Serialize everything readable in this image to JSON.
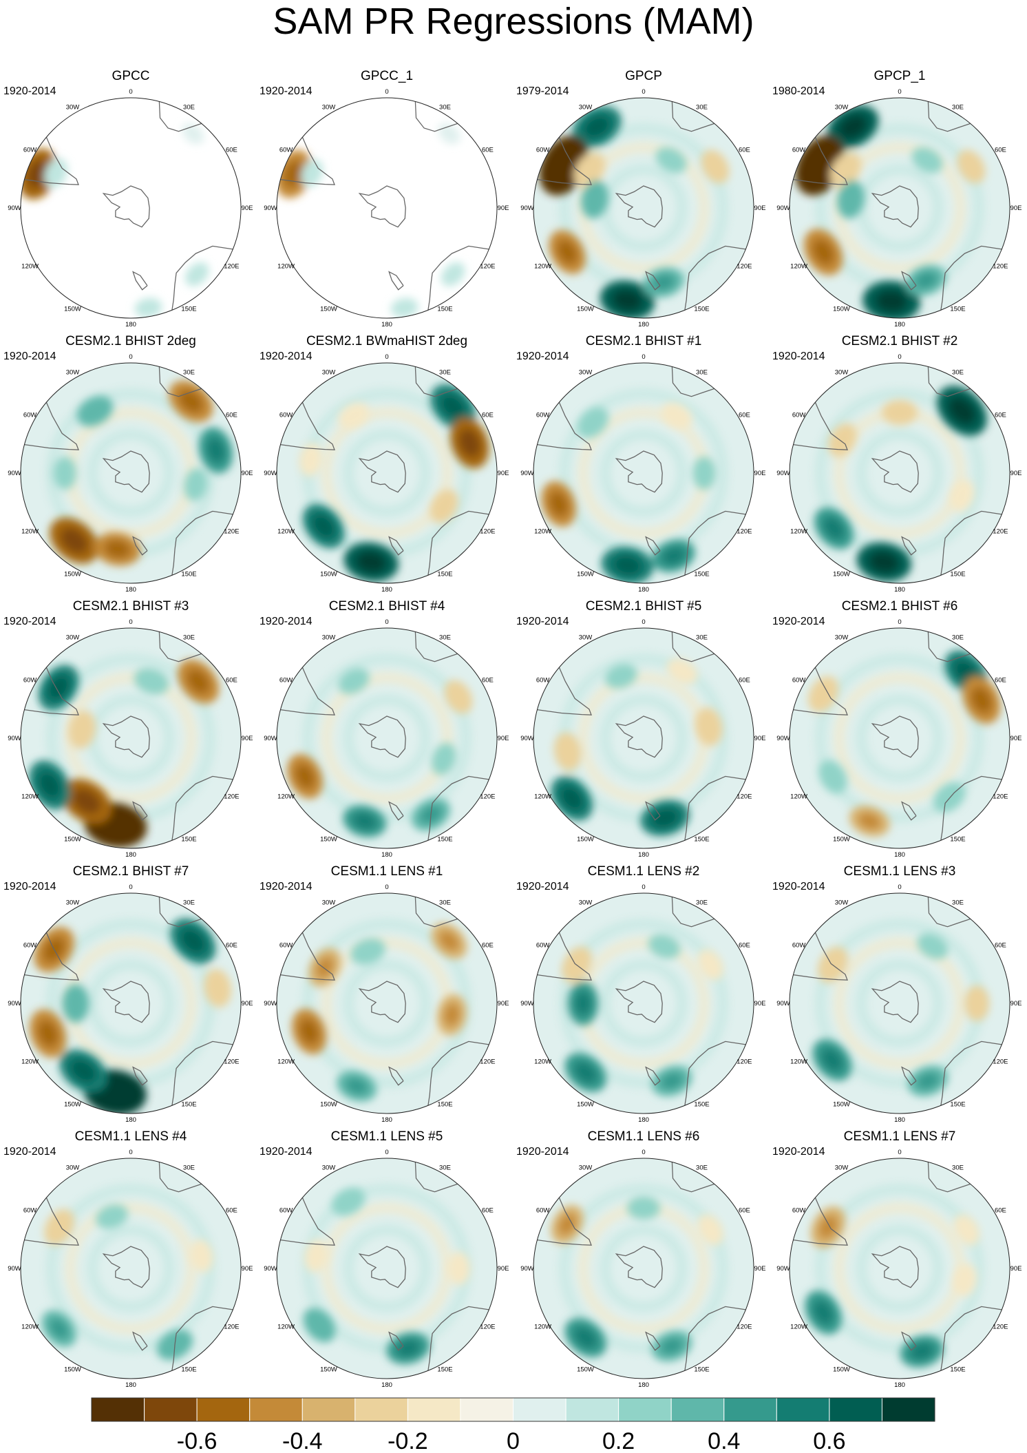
{
  "title": "SAM PR Regressions (MAM)",
  "colorbar": {
    "colors": [
      "#543005",
      "#7e470b",
      "#a4660f",
      "#c48a38",
      "#d8b26e",
      "#ebd29c",
      "#f5e8c6",
      "#f5f2e6",
      "#e0f0ee",
      "#c0e6e0",
      "#90d3c7",
      "#5fb7aa",
      "#359a8d",
      "#147d72",
      "#015e52",
      "#003c30"
    ],
    "ticks": [
      "-0.6",
      "-0.4",
      "-0.2",
      "0",
      "0.2",
      "0.4",
      "0.6"
    ],
    "tick_values": [
      -0.6,
      -0.4,
      -0.2,
      0,
      0.2,
      0.4,
      0.6
    ],
    "levels": [
      -0.7,
      -0.6,
      -0.5,
      -0.4,
      -0.3,
      -0.2,
      -0.1,
      0,
      0.1,
      0.2,
      0.3,
      0.4,
      0.5,
      0.6,
      0.7
    ],
    "range": [
      -0.8,
      0.8
    ]
  },
  "lon_labels": [
    "0",
    "30E",
    "60E",
    "90E",
    "120E",
    "150E",
    "180",
    "150W",
    "120W",
    "90W",
    "60W",
    "30W"
  ],
  "chart_data": {
    "type": "heatmap",
    "projection": "south-polar-stereographic",
    "grid": "5 rows x 4 columns of panels",
    "panels": [
      {
        "title": "GPCC",
        "years": "1920-2014",
        "coverage": "land-only",
        "features": [
          {
            "lon": -70,
            "r": 0.9,
            "v": -0.55
          },
          {
            "lon": -65,
            "r": 0.75,
            "v": 0.15
          },
          {
            "lon": 40,
            "r": 0.88,
            "v": 0.05
          },
          {
            "lon": 135,
            "r": 0.85,
            "v": 0.1
          },
          {
            "lon": 170,
            "r": 0.92,
            "v": 0.1
          }
        ]
      },
      {
        "title": "GPCC_1",
        "years": "1920-2014",
        "coverage": "land-only",
        "features": [
          {
            "lon": -70,
            "r": 0.9,
            "v": -0.5
          },
          {
            "lon": -65,
            "r": 0.75,
            "v": 0.12
          },
          {
            "lon": 40,
            "r": 0.88,
            "v": 0.05
          },
          {
            "lon": 135,
            "r": 0.85,
            "v": 0.1
          },
          {
            "lon": 170,
            "r": 0.92,
            "v": 0.1
          }
        ]
      },
      {
        "title": "GPCP",
        "years": "1979-2014",
        "features": [
          {
            "lon": -30,
            "r": 0.85,
            "v": 0.55
          },
          {
            "lon": -62,
            "r": 0.82,
            "v": -0.75
          },
          {
            "lon": -55,
            "r": 0.6,
            "v": -0.3
          },
          {
            "lon": -120,
            "r": 0.8,
            "v": -0.45
          },
          {
            "lon": -170,
            "r": 0.85,
            "v": 0.6
          },
          {
            "lon": 165,
            "r": 0.7,
            "v": 0.35
          },
          {
            "lon": 60,
            "r": 0.75,
            "v": -0.25
          },
          {
            "lon": -80,
            "r": 0.45,
            "v": 0.3
          },
          {
            "lon": 30,
            "r": 0.5,
            "v": 0.2
          }
        ]
      },
      {
        "title": "GPCP_1",
        "years": "1980-2014",
        "features": [
          {
            "lon": -30,
            "r": 0.85,
            "v": 0.6
          },
          {
            "lon": -62,
            "r": 0.82,
            "v": -0.75
          },
          {
            "lon": -55,
            "r": 0.6,
            "v": -0.3
          },
          {
            "lon": -120,
            "r": 0.8,
            "v": -0.5
          },
          {
            "lon": -175,
            "r": 0.85,
            "v": 0.65
          },
          {
            "lon": 160,
            "r": 0.7,
            "v": 0.35
          },
          {
            "lon": 60,
            "r": 0.75,
            "v": -0.25
          },
          {
            "lon": -80,
            "r": 0.45,
            "v": 0.3
          },
          {
            "lon": 30,
            "r": 0.5,
            "v": 0.2
          }
        ]
      },
      {
        "title": "CESM2.1 BHIST 2deg",
        "years": "1920-2014",
        "features": [
          {
            "lon": 40,
            "r": 0.85,
            "v": -0.5
          },
          {
            "lon": 75,
            "r": 0.8,
            "v": 0.45
          },
          {
            "lon": -140,
            "r": 0.8,
            "v": -0.6
          },
          {
            "lon": -170,
            "r": 0.7,
            "v": -0.45
          },
          {
            "lon": -30,
            "r": 0.65,
            "v": 0.3
          },
          {
            "lon": -90,
            "r": 0.6,
            "v": 0.2
          },
          {
            "lon": 100,
            "r": 0.6,
            "v": 0.2
          }
        ]
      },
      {
        "title": "CESM2.1 BWmaHIST 2deg",
        "years": "1920-2014",
        "features": [
          {
            "lon": 45,
            "r": 0.85,
            "v": 0.55
          },
          {
            "lon": 70,
            "r": 0.8,
            "v": -0.55
          },
          {
            "lon": -170,
            "r": 0.82,
            "v": 0.6
          },
          {
            "lon": -130,
            "r": 0.75,
            "v": 0.5
          },
          {
            "lon": -30,
            "r": 0.6,
            "v": -0.2
          },
          {
            "lon": 120,
            "r": 0.6,
            "v": -0.25
          },
          {
            "lon": -80,
            "r": 0.7,
            "v": -0.2
          }
        ]
      },
      {
        "title": "CESM2.1 BHIST #1",
        "years": "1920-2014",
        "features": [
          {
            "lon": -110,
            "r": 0.82,
            "v": -0.45
          },
          {
            "lon": -170,
            "r": 0.85,
            "v": 0.55
          },
          {
            "lon": 160,
            "r": 0.8,
            "v": 0.4
          },
          {
            "lon": 30,
            "r": 0.6,
            "v": -0.2
          },
          {
            "lon": 90,
            "r": 0.55,
            "v": 0.2
          },
          {
            "lon": -45,
            "r": 0.65,
            "v": 0.25
          }
        ]
      },
      {
        "title": "CESM2.1 BHIST #2",
        "years": "1920-2014",
        "features": [
          {
            "lon": 45,
            "r": 0.8,
            "v": 0.65
          },
          {
            "lon": -170,
            "r": 0.82,
            "v": 0.6
          },
          {
            "lon": -130,
            "r": 0.78,
            "v": 0.45
          },
          {
            "lon": -60,
            "r": 0.6,
            "v": -0.25
          },
          {
            "lon": 110,
            "r": 0.6,
            "v": -0.2
          },
          {
            "lon": 0,
            "r": 0.55,
            "v": -0.25
          }
        ]
      },
      {
        "title": "CESM2.1 BHIST #3",
        "years": "1920-2014",
        "features": [
          {
            "lon": -170,
            "r": 0.8,
            "v": -0.75
          },
          {
            "lon": -145,
            "r": 0.7,
            "v": -0.6
          },
          {
            "lon": -120,
            "r": 0.85,
            "v": 0.55
          },
          {
            "lon": -55,
            "r": 0.8,
            "v": 0.5
          },
          {
            "lon": 50,
            "r": 0.8,
            "v": -0.5
          },
          {
            "lon": -80,
            "r": 0.45,
            "v": -0.3
          },
          {
            "lon": 20,
            "r": 0.55,
            "v": 0.25
          }
        ]
      },
      {
        "title": "CESM2.1 BHIST #4",
        "years": "1920-2014",
        "features": [
          {
            "lon": -115,
            "r": 0.82,
            "v": -0.45
          },
          {
            "lon": -165,
            "r": 0.78,
            "v": 0.4
          },
          {
            "lon": 150,
            "r": 0.8,
            "v": 0.35
          },
          {
            "lon": 60,
            "r": 0.75,
            "v": -0.25
          },
          {
            "lon": -30,
            "r": 0.6,
            "v": 0.2
          },
          {
            "lon": 110,
            "r": 0.55,
            "v": 0.2
          }
        ]
      },
      {
        "title": "CESM2.1 BHIST #5",
        "years": "1920-2014",
        "features": [
          {
            "lon": -130,
            "r": 0.85,
            "v": 0.5
          },
          {
            "lon": 165,
            "r": 0.75,
            "v": 0.5
          },
          {
            "lon": -100,
            "r": 0.7,
            "v": -0.3
          },
          {
            "lon": 80,
            "r": 0.6,
            "v": -0.3
          },
          {
            "lon": -20,
            "r": 0.6,
            "v": 0.2
          },
          {
            "lon": 30,
            "r": 0.7,
            "v": -0.2
          }
        ]
      },
      {
        "title": "CESM2.1 BHIST #6",
        "years": "1920-2014",
        "features": [
          {
            "lon": 45,
            "r": 0.85,
            "v": 0.5
          },
          {
            "lon": 65,
            "r": 0.82,
            "v": -0.5
          },
          {
            "lon": -160,
            "r": 0.8,
            "v": -0.35
          },
          {
            "lon": -120,
            "r": 0.7,
            "v": 0.25
          },
          {
            "lon": 140,
            "r": 0.7,
            "v": 0.25
          },
          {
            "lon": -60,
            "r": 0.8,
            "v": -0.3
          }
        ]
      },
      {
        "title": "CESM2.1 BHIST #7",
        "years": "1920-2014",
        "features": [
          {
            "lon": -170,
            "r": 0.82,
            "v": 0.75
          },
          {
            "lon": -145,
            "r": 0.75,
            "v": 0.55
          },
          {
            "lon": 45,
            "r": 0.8,
            "v": 0.55
          },
          {
            "lon": -110,
            "r": 0.8,
            "v": -0.5
          },
          {
            "lon": -55,
            "r": 0.85,
            "v": -0.5
          },
          {
            "lon": 80,
            "r": 0.8,
            "v": -0.3
          },
          {
            "lon": -90,
            "r": 0.5,
            "v": 0.3
          }
        ]
      },
      {
        "title": "CESM1.1 LENS #1",
        "years": "1920-2014",
        "features": [
          {
            "lon": -110,
            "r": 0.75,
            "v": -0.45
          },
          {
            "lon": -60,
            "r": 0.65,
            "v": -0.35
          },
          {
            "lon": 100,
            "r": 0.6,
            "v": -0.35
          },
          {
            "lon": -160,
            "r": 0.8,
            "v": 0.35
          },
          {
            "lon": 45,
            "r": 0.8,
            "v": -0.35
          },
          {
            "lon": -20,
            "r": 0.5,
            "v": 0.25
          }
        ]
      },
      {
        "title": "CESM1.1 LENS #2",
        "years": "1920-2014",
        "features": [
          {
            "lon": -90,
            "r": 0.55,
            "v": 0.4
          },
          {
            "lon": -140,
            "r": 0.82,
            "v": 0.45
          },
          {
            "lon": 160,
            "r": 0.75,
            "v": 0.35
          },
          {
            "lon": -60,
            "r": 0.7,
            "v": -0.3
          },
          {
            "lon": 60,
            "r": 0.7,
            "v": -0.2
          },
          {
            "lon": 20,
            "r": 0.55,
            "v": 0.2
          }
        ]
      },
      {
        "title": "CESM1.1 LENS #3",
        "years": "1920-2014",
        "features": [
          {
            "lon": -130,
            "r": 0.8,
            "v": 0.45
          },
          {
            "lon": 160,
            "r": 0.75,
            "v": 0.35
          },
          {
            "lon": -60,
            "r": 0.7,
            "v": -0.3
          },
          {
            "lon": 90,
            "r": 0.7,
            "v": -0.25
          },
          {
            "lon": 30,
            "r": 0.6,
            "v": 0.2
          }
        ]
      },
      {
        "title": "CESM1.1 LENS #4",
        "years": "1920-2014",
        "features": [
          {
            "lon": -130,
            "r": 0.85,
            "v": 0.35
          },
          {
            "lon": 150,
            "r": 0.8,
            "v": 0.3
          },
          {
            "lon": -60,
            "r": 0.75,
            "v": -0.3
          },
          {
            "lon": 80,
            "r": 0.65,
            "v": -0.2
          },
          {
            "lon": -20,
            "r": 0.5,
            "v": 0.2
          }
        ]
      },
      {
        "title": "CESM1.1 LENS #5",
        "years": "1920-2014",
        "features": [
          {
            "lon": -130,
            "r": 0.8,
            "v": 0.3
          },
          {
            "lon": 165,
            "r": 0.75,
            "v": 0.4
          },
          {
            "lon": -30,
            "r": 0.7,
            "v": 0.25
          },
          {
            "lon": -80,
            "r": 0.65,
            "v": -0.2
          },
          {
            "lon": 90,
            "r": 0.65,
            "v": -0.2
          }
        ]
      },
      {
        "title": "CESM1.1 LENS #6",
        "years": "1920-2014",
        "features": [
          {
            "lon": -140,
            "r": 0.82,
            "v": 0.45
          },
          {
            "lon": 160,
            "r": 0.75,
            "v": 0.35
          },
          {
            "lon": -60,
            "r": 0.8,
            "v": -0.35
          },
          {
            "lon": 60,
            "r": 0.7,
            "v": -0.2
          },
          {
            "lon": 0,
            "r": 0.55,
            "v": 0.2
          }
        ]
      },
      {
        "title": "CESM1.1 LENS #7",
        "years": "1920-2014",
        "features": [
          {
            "lon": -120,
            "r": 0.8,
            "v": 0.45
          },
          {
            "lon": 165,
            "r": 0.78,
            "v": 0.4
          },
          {
            "lon": -60,
            "r": 0.75,
            "v": -0.4
          },
          {
            "lon": 60,
            "r": 0.7,
            "v": -0.2
          },
          {
            "lon": 100,
            "r": 0.6,
            "v": -0.2
          }
        ]
      }
    ]
  }
}
